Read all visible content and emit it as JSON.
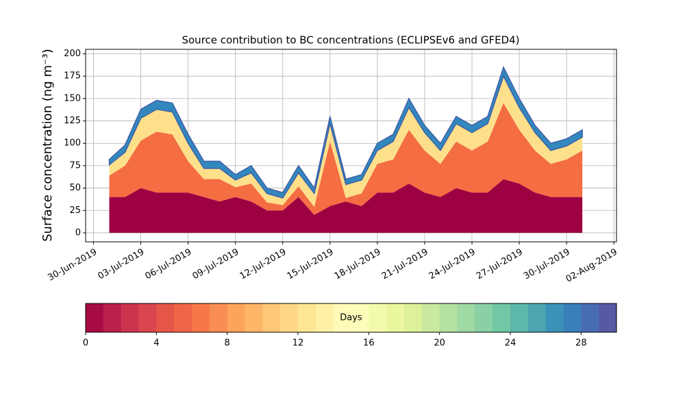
{
  "chart_data": {
    "type": "stacked-area",
    "title": "Source contribution to BC concentrations (ECLIPSEv6 and GFED4)",
    "ylabel": "Surface concentration (ng m⁻³)",
    "x": [
      "2019-07-01",
      "2019-07-02",
      "2019-07-03",
      "2019-07-04",
      "2019-07-05",
      "2019-07-06",
      "2019-07-07",
      "2019-07-08",
      "2019-07-09",
      "2019-07-10",
      "2019-07-11",
      "2019-07-12",
      "2019-07-13",
      "2019-07-14",
      "2019-07-15",
      "2019-07-16",
      "2019-07-17",
      "2019-07-18",
      "2019-07-19",
      "2019-07-20",
      "2019-07-21",
      "2019-07-22",
      "2019-07-23",
      "2019-07-24",
      "2019-07-25",
      "2019-07-26",
      "2019-07-27",
      "2019-07-28",
      "2019-07-29",
      "2019-07-30",
      "2019-07-31"
    ],
    "series": [
      {
        "color": "#9e0142",
        "values": [
          40,
          40,
          50,
          45,
          45,
          45,
          40,
          35,
          40,
          35,
          25,
          25,
          40,
          20,
          30,
          35,
          30,
          45,
          45,
          55,
          45,
          40,
          50,
          45,
          45,
          60,
          55,
          45,
          40,
          40,
          40
        ]
      },
      {
        "color": "#f46d43",
        "values": [
          24,
          35,
          53,
          68,
          65,
          35,
          20,
          25,
          11,
          20,
          9,
          6,
          12,
          9,
          72,
          4,
          14,
          32,
          37,
          60,
          47,
          37,
          52,
          47,
          57,
          85,
          60,
          47,
          37,
          42,
          52
        ]
      },
      {
        "color": "#fee08b",
        "values": [
          12,
          15,
          25,
          25,
          25,
          20,
          12,
          12,
          8,
          12,
          10,
          8,
          15,
          15,
          20,
          15,
          15,
          15,
          20,
          25,
          20,
          15,
          20,
          20,
          20,
          30,
          25,
          20,
          15,
          15,
          15
        ]
      },
      {
        "color": "#3288bd",
        "values": [
          6,
          8,
          10,
          10,
          10,
          10,
          8,
          8,
          6,
          8,
          6,
          6,
          8,
          6,
          8,
          6,
          6,
          8,
          8,
          10,
          8,
          8,
          8,
          8,
          8,
          10,
          10,
          8,
          8,
          8,
          8
        ]
      }
    ],
    "xlim": [
      "2019-06-29T12:00",
      "2019-08-02T04:00"
    ],
    "xticks": [
      {
        "value": "2019-06-30",
        "label": "30-Jun-2019"
      },
      {
        "value": "2019-07-03",
        "label": "03-Jul-2019"
      },
      {
        "value": "2019-07-06",
        "label": "06-Jul-2019"
      },
      {
        "value": "2019-07-09",
        "label": "09-Jul-2019"
      },
      {
        "value": "2019-07-12",
        "label": "12-Jul-2019"
      },
      {
        "value": "2019-07-15",
        "label": "15-Jul-2019"
      },
      {
        "value": "2019-07-18",
        "label": "18-Jul-2019"
      },
      {
        "value": "2019-07-21",
        "label": "21-Jul-2019"
      },
      {
        "value": "2019-07-24",
        "label": "24-Jul-2019"
      },
      {
        "value": "2019-07-27",
        "label": "27-Jul-2019"
      },
      {
        "value": "2019-07-30",
        "label": "30-Jul-2019"
      },
      {
        "value": "2019-08-02",
        "label": "02-Aug-2019"
      }
    ],
    "ylim": [
      -10,
      205
    ],
    "yticks": [
      0,
      25,
      50,
      75,
      100,
      125,
      150,
      175,
      200
    ],
    "grid": true,
    "colorbar": {
      "label": "Days",
      "lim": [
        0,
        30
      ],
      "ticks": [
        0,
        4,
        8,
        12,
        16,
        20,
        24,
        28
      ],
      "colormap": [
        "#9e0142",
        "#d53e4f",
        "#f46d43",
        "#fdae61",
        "#fee08b",
        "#ffffbf",
        "#e6f598",
        "#abdda4",
        "#66c2a5",
        "#3288bd",
        "#5e4fa2"
      ]
    }
  }
}
